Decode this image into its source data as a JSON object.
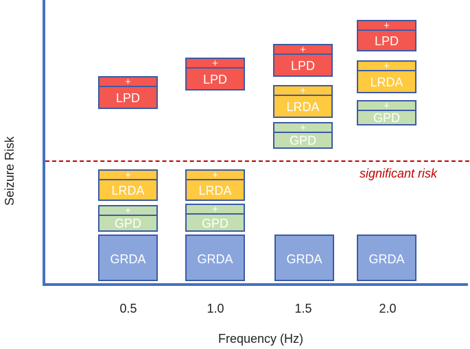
{
  "axes": {
    "x_title": "Frequency (Hz)",
    "y_title": "Seizure Risk",
    "x_ticks": [
      "0.5",
      "1.0",
      "1.5",
      "2.0"
    ]
  },
  "threshold": {
    "label": "significant risk",
    "color": "#c00000"
  },
  "plus_sign": "+",
  "colors": {
    "LPD": "#f4574f",
    "LRDA": "#ffc940",
    "GPD": "#c3deb0",
    "GRDA": "#8aa5dc",
    "axis": "#4472c4"
  },
  "columns": [
    {
      "freq": "0.5",
      "boxes": [
        {
          "label": "LPD",
          "plus": true
        },
        {
          "label": "LRDA",
          "plus": true
        },
        {
          "label": "GPD",
          "plus": true
        },
        {
          "label": "GRDA",
          "plus": false
        }
      ]
    },
    {
      "freq": "1.0",
      "boxes": [
        {
          "label": "LPD",
          "plus": true
        },
        {
          "label": "LRDA",
          "plus": true
        },
        {
          "label": "GPD",
          "plus": true
        },
        {
          "label": "GRDA",
          "plus": false
        }
      ]
    },
    {
      "freq": "1.5",
      "boxes": [
        {
          "label": "LPD",
          "plus": true
        },
        {
          "label": "LRDA",
          "plus": true
        },
        {
          "label": "GPD",
          "plus": true
        },
        {
          "label": "GRDA",
          "plus": false
        }
      ]
    },
    {
      "freq": "2.0",
      "boxes": [
        {
          "label": "LPD",
          "plus": true
        },
        {
          "label": "LRDA",
          "plus": true
        },
        {
          "label": "GPD",
          "plus": true
        },
        {
          "label": "GRDA",
          "plus": false
        }
      ]
    }
  ]
}
